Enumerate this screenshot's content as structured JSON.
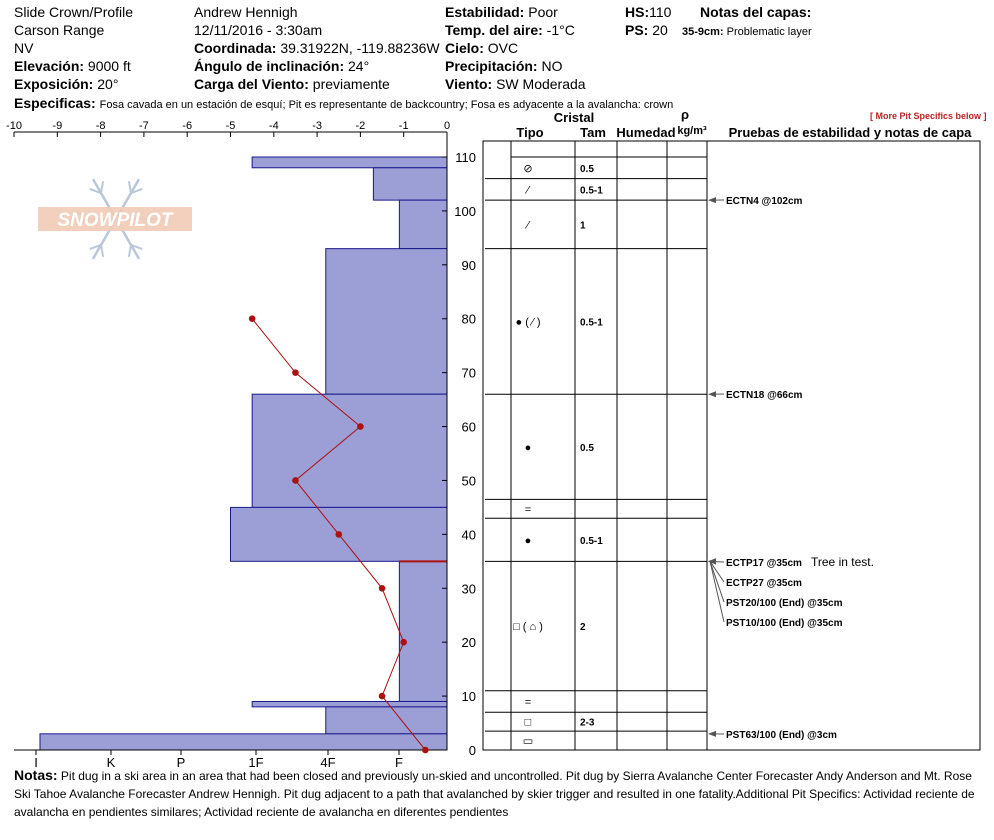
{
  "header": {
    "location": "Slide Crown/Profile",
    "range": "Carson Range",
    "state": "NV",
    "elevation_label": "Elevación:",
    "elevation_value": "9000 ft",
    "aspect_label": "Exposición:",
    "aspect_value": "20°",
    "observer": "Andrew Hennigh",
    "datetime": "12/11/2016 - 3:30am",
    "coord_label": "Coordinada:",
    "coord_value": "39.31922N, -119.88236W",
    "incline_label": "Ángulo de inclinación:",
    "incline_value": "24°",
    "windload_label": "Carga del Viento:",
    "windload_value": "previamente",
    "stability_label": "Estabilidad:",
    "stability_value": "Poor",
    "airtemp_label": "Temp. del aire:",
    "airtemp_value": "-1°C",
    "sky_label": "Cielo:",
    "sky_value": "OVC",
    "precip_label": "Precipitación:",
    "precip_value": "NO",
    "wind_label": "Viento:",
    "wind_value": "SW Moderada",
    "hs_label": "HS:",
    "hs_value": "110",
    "ps_label": "PS:",
    "ps_value": "20",
    "layer_notes_label": "Notas del capas:",
    "layer_note_depth": "35-9cm:",
    "layer_note_text": "Problematic layer",
    "specifics_label": "Especificas:",
    "specifics_text": "Fosa cavada en un estación de esquí; Pit es representante de backcountry; Fosa es adyacente a la avalancha: crown",
    "more_specifics": "[ More Pit Specifics below ]"
  },
  "logo": {
    "text": "SNOWPILOT"
  },
  "columns": {
    "crystal": "Cristal",
    "type": "Tipo",
    "size": "Tam",
    "humidity": "Humedad",
    "rho": "ρ",
    "density_unit": "kg/m³",
    "tests": "Pruebas de estabilidad y notas de capa"
  },
  "notes": {
    "label": "Notas:",
    "text": "Pit dug in a ski area in an area that had been closed and previously un-skied and uncontrolled. Pit dug by Sierra Avalanche Center Forecaster Andy Anderson and Mt. Rose Ski Tahoe Avalanche Forecaster Andrew Hennigh. Pit dug adjacent to a path that avalanched by skier trigger and resulted in one fatality.Additional Pit Specifics: Actividad reciente de avalancha en pendientes similares; Actividad reciente de avalancha en diferentes pendientes"
  },
  "chart_data": {
    "type": "bar",
    "temp_axis": {
      "min": -10,
      "max": 0,
      "ticks": [
        -10,
        -9,
        -8,
        -7,
        -6,
        -5,
        -4,
        -3,
        -2,
        -1,
        0
      ]
    },
    "depth_axis": {
      "min": 0,
      "max": 110,
      "ticks": [
        0,
        10,
        20,
        30,
        40,
        50,
        60,
        70,
        80,
        90,
        100,
        110
      ]
    },
    "hardness_labels": [
      "I",
      "K",
      "P",
      "1F",
      "4F",
      "F"
    ],
    "colors": {
      "bar_fill": "#9c9ed6",
      "bar_stroke": "#1a1a8c",
      "temp_line": "#aa1111"
    },
    "hardness_layers": [
      {
        "top": 110,
        "bottom": 108,
        "hardness_x": -4.5
      },
      {
        "top": 108,
        "bottom": 102,
        "hardness_x": -1.7
      },
      {
        "top": 102,
        "bottom": 93,
        "hardness_x": -1.1
      },
      {
        "top": 93,
        "bottom": 66,
        "hardness_x": -2.8
      },
      {
        "top": 66,
        "bottom": 45,
        "hardness_x": -4.5
      },
      {
        "top": 45,
        "bottom": 35,
        "hardness_x": -5.0
      },
      {
        "top": 35,
        "bottom": 9,
        "hardness_x": -1.1
      },
      {
        "top": 9,
        "bottom": 8,
        "hardness_x": -4.5
      },
      {
        "top": 8,
        "bottom": 3,
        "hardness_x": -2.8
      },
      {
        "top": 3,
        "bottom": 0,
        "hardness_x": -9.4
      }
    ],
    "temperature_profile": [
      {
        "depth": 80,
        "temp": -4.5
      },
      {
        "depth": 70,
        "temp": -3.5
      },
      {
        "depth": 60,
        "temp": -2.0
      },
      {
        "depth": 50,
        "temp": -3.5
      },
      {
        "depth": 40,
        "temp": -2.5
      },
      {
        "depth": 30,
        "temp": -1.5
      },
      {
        "depth": 20,
        "temp": -1.0
      },
      {
        "depth": 10,
        "temp": -1.5
      },
      {
        "depth": 0,
        "temp": -0.5
      }
    ],
    "layers": [
      {
        "top": 110,
        "bottom": 106,
        "type": "⊘",
        "size": "0.5"
      },
      {
        "top": 106,
        "bottom": 102,
        "type": "⁄",
        "size": "0.5-1"
      },
      {
        "top": 102,
        "bottom": 93,
        "type": "⁄",
        "size": "1"
      },
      {
        "top": 93,
        "bottom": 66,
        "type": "● ( ⁄ )",
        "size": "0.5-1"
      },
      {
        "top": 66,
        "bottom": 46.5,
        "type": "●",
        "size": "0.5"
      },
      {
        "top": 46.5,
        "bottom": 43,
        "type": "=",
        "size": ""
      },
      {
        "top": 43,
        "bottom": 35,
        "type": "●",
        "size": "0.5-1"
      },
      {
        "top": 35,
        "bottom": 11,
        "type": "□ ( ⌂ )",
        "size": "2"
      },
      {
        "top": 11,
        "bottom": 7,
        "type": "=",
        "size": ""
      },
      {
        "top": 7,
        "bottom": 3.5,
        "type": "□",
        "size": "2-3"
      },
      {
        "top": 3.5,
        "bottom": 0,
        "type": "▭",
        "size": ""
      }
    ],
    "tests": [
      {
        "depth": 102,
        "label": "ECTN4 @102cm",
        "note": ""
      },
      {
        "depth": 66,
        "label": "ECTN18 @66cm",
        "note": ""
      },
      {
        "depth": 35,
        "label": "ECTP17 @35cm",
        "note": "Tree in test."
      },
      {
        "depth": 35,
        "label": "ECTP27 @35cm",
        "note": ""
      },
      {
        "depth": 35,
        "label": "PST20/100 (End) @35cm",
        "note": ""
      },
      {
        "depth": 35,
        "label": "PST10/100 (End) @35cm",
        "note": ""
      },
      {
        "depth": 3,
        "label": "PST63/100 (End) @3cm",
        "note": ""
      }
    ]
  }
}
